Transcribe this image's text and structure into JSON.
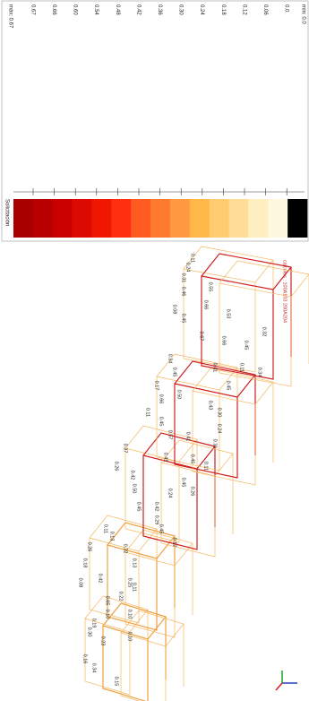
{
  "legend": {
    "title": "Solicitación",
    "max_label": "máx: 0.67",
    "min_label": "mín: 0.0",
    "labels": [
      "0.67",
      "0.66",
      "0.60",
      "0.54",
      "0.48",
      "0.42",
      "0.36",
      "0.30",
      "0.24",
      "0.18",
      "0.12",
      "0.06",
      "0.0"
    ],
    "colors": [
      "#a80000",
      "#b80000",
      "#c80000",
      "#dc0a00",
      "#f01800",
      "#ff3010",
      "#ff5a20",
      "#ff7a30",
      "#ff9a40",
      "#ffb848",
      "#ffcc70",
      "#ffdc98",
      "#ffeec0",
      "#fff8e0",
      "#000000"
    ]
  },
  "frame": {
    "caption": "cálculos : 100A103 200A204",
    "member_labels": [
      "0.15",
      "0.34",
      "0.16",
      "0.30",
      "0.23",
      "0.19",
      "0.10",
      "0.10",
      "0.10",
      "0.11",
      "0.08",
      "0.42",
      "0.18",
      "0.26",
      "0.13",
      "0.22",
      "0.65",
      "0.25",
      "0.32",
      "0.11",
      "0.13",
      "0.12",
      "0.45",
      "0.29",
      "0.45",
      "0.42",
      "0.50",
      "0.42",
      "0.26",
      "0.37",
      "0.24",
      "0.26",
      "0.45",
      "0.11",
      "0.45",
      "0.41",
      "0.31",
      "0.24",
      "0.30",
      "0.43",
      "0.57",
      "0.41",
      "0.50",
      "0.66",
      "0.45",
      "0.11",
      "0.17",
      "0.45",
      "0.34",
      "0.45",
      "0.11",
      "0.34",
      "0.41",
      "0.45",
      "0.32",
      "0.66",
      "0.53",
      "0.67",
      "0.55",
      "0.66",
      "0.45",
      "0.46",
      "0.08",
      "0.31",
      "0.24",
      "0.11"
    ]
  }
}
